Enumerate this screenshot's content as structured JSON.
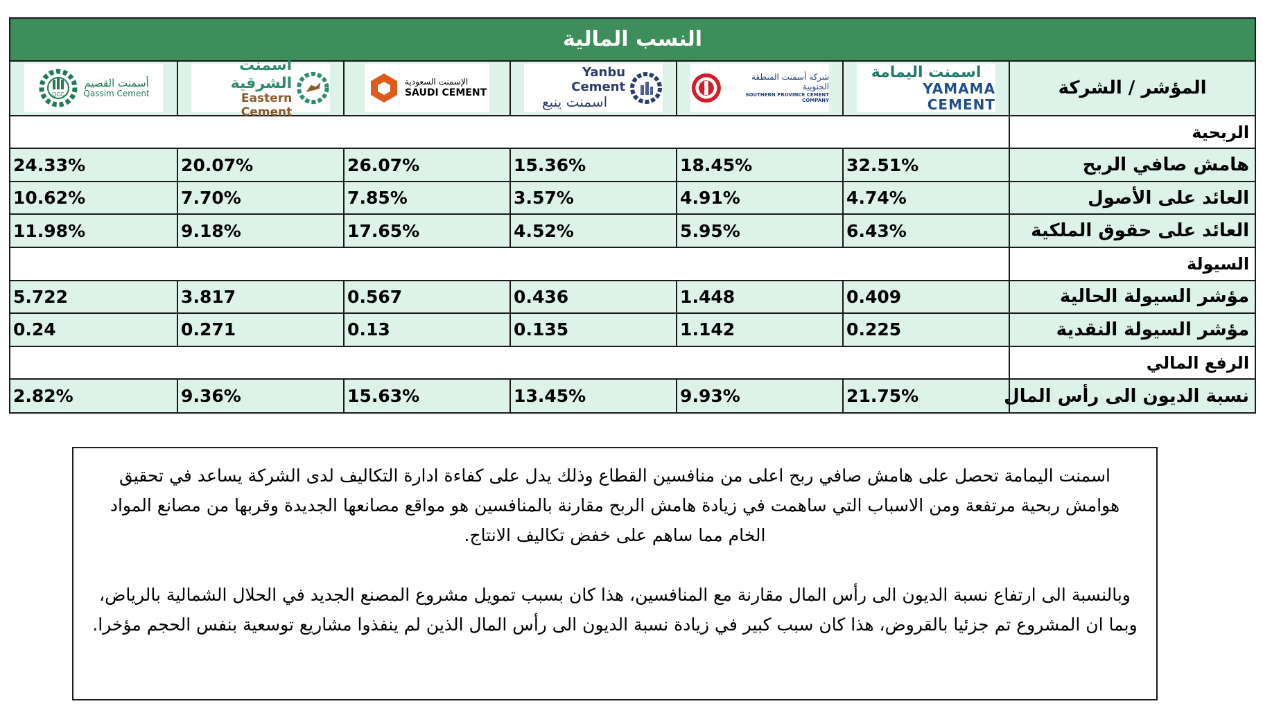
{
  "title": "النسب المالية",
  "header_label": "المؤشر / الشركة",
  "companies": [
    {
      "name_ar": "اسمنت اليمامة",
      "name_en": "YAMAMA CEMENT",
      "accent": "#1f7a6a"
    },
    {
      "name_ar": "شركة أسمنت المنطقة الجنوبية",
      "name_en": "SOUTHERN PROVINCE CEMENT COMPANY",
      "accent": "#d21f26"
    },
    {
      "name_ar": "اسمنت ينبع",
      "name_en": "Yanbu Cement",
      "accent": "#2a3c6e"
    },
    {
      "name_ar": "الإسمنت السعودية",
      "name_en": "SAUDI CEMENT",
      "accent": "#e05a1a"
    },
    {
      "name_ar": "اسمنت الشرقية",
      "name_en": "Eastern Cement",
      "accent": "#2e8b6a"
    },
    {
      "name_ar": "أسمنت القصيم",
      "name_en": "Qassim Cement",
      "accent": "#1f7a55",
      "mark": "QCC"
    }
  ],
  "sections": {
    "profitability": "الربحية",
    "liquidity": "السيولة",
    "leverage": "الرفع المالي"
  },
  "rows": [
    {
      "label": "هامش صافي الربح",
      "values": [
        "32.51%",
        "18.45%",
        "15.36%",
        "26.07%",
        "20.07%",
        "24.33%"
      ]
    },
    {
      "label": "العائد على الأصول",
      "values": [
        "4.74%",
        "4.91%",
        "3.57%",
        "7.85%",
        "7.70%",
        "10.62%"
      ]
    },
    {
      "label": "العائد على حقوق الملكية",
      "values": [
        "6.43%",
        "5.95%",
        "4.52%",
        "17.65%",
        "9.18%",
        "11.98%"
      ]
    },
    {
      "label": "مؤشر السيولة الحالية",
      "values": [
        "0.409",
        "1.448",
        "0.436",
        "0.567",
        "3.817",
        "5.722"
      ]
    },
    {
      "label": "مؤشر السيولة النقدية",
      "values": [
        "0.225",
        "1.142",
        "0.135",
        "0.13",
        "0.271",
        "0.24"
      ]
    },
    {
      "label": "نسبة الديون الى رأس المال",
      "values": [
        "21.75%",
        "9.93%",
        "13.45%",
        "15.63%",
        "9.36%",
        "2.82%"
      ]
    }
  ],
  "note": {
    "paragraph1": "اسمنت اليمامة تحصل على هامش صافي ربح اعلى من منافسين القطاع وذلك يدل على كفاءة ادارة التكاليف لدى الشركة يساعد في تحقيق هوامش ربحية مرتفعة ومن الاسباب التي ساهمت في زيادة هامش الربح مقارنة بالمنافسين هو مواقع مصانعها الجديدة وقربها من مصانع المواد الخام مما ساهم على خفض تكاليف الانتاج.",
    "paragraph2": "وبالنسبة الى ارتفاع نسبة الديون الى رأس المال مقارنة مع المنافسين، هذا كان بسبب تمويل مشروع المصنع الجديد في الحلال الشمالية بالرياض، وبما ان المشروع تم جزئيا بالقروض، هذا كان سبب كبير في زيادة نسبة الديون الى رأس المال الذين لم ينفذوا مشاريع توسعية بنفس الحجم مؤخرا."
  },
  "colors": {
    "title_bg": "#3e8e5c",
    "row_bg": "#ddf2e8",
    "border": "#1a1a1a"
  }
}
